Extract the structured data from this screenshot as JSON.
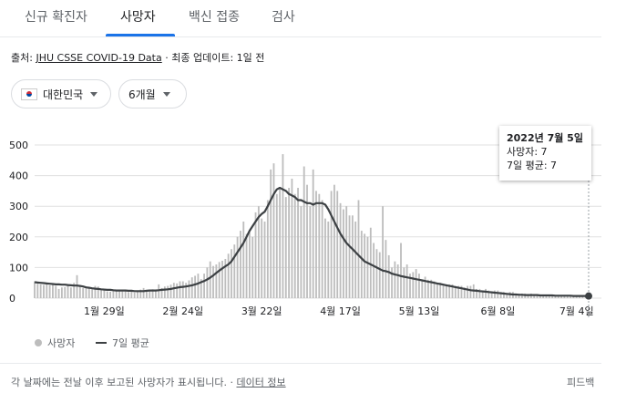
{
  "tabs": [
    {
      "label": "신규 확진자",
      "active": false
    },
    {
      "label": "사망자",
      "active": true
    },
    {
      "label": "백신 접종",
      "active": false
    },
    {
      "label": "검사",
      "active": false
    }
  ],
  "source": {
    "prefix": "출처: ",
    "link": "JHU CSSE COVID-19 Data",
    "suffix": " · 최종 업데이트: 1일 전"
  },
  "filters": {
    "country": "대한민국",
    "country_flag": "korea-flag-icon",
    "period": "6개월"
  },
  "tooltip": {
    "date": "2022년 7월 5일",
    "deaths": "사망자: 7",
    "avg": "7일 평균: 7"
  },
  "legend": {
    "bars": "사망자",
    "line": "7일 평균"
  },
  "footer": {
    "note": "각 날짜에는 전날 이후 보고된 사망자가 표시됩니다. · ",
    "link": "데이터 정보",
    "feedback": "피드백"
  },
  "colors": {
    "bar": "#bdbdbd",
    "line": "#3c4043",
    "grid": "#e0e0e0",
    "accent": "#1a73e8"
  },
  "chart_data": {
    "type": "bar",
    "title": "",
    "xlabel": "",
    "ylabel": "",
    "ylim": [
      0,
      500
    ],
    "yticks": [
      0,
      100,
      200,
      300,
      400,
      500
    ],
    "xtick_labels": [
      "1월 29일",
      "2월 24일",
      "3월 22일",
      "4월 17일",
      "5월 13일",
      "6월 8일",
      "7월 4일"
    ],
    "xtick_day_index": [
      23,
      49,
      75,
      101,
      127,
      153,
      179
    ],
    "series": [
      {
        "name": "사망자",
        "values": [
          55,
          47,
          45,
          43,
          45,
          42,
          48,
          40,
          30,
          35,
          36,
          45,
          35,
          50,
          75,
          40,
          33,
          32,
          33,
          29,
          40,
          38,
          27,
          25,
          22,
          21,
          24,
          24,
          27,
          22,
          24,
          20,
          23,
          18,
          25,
          28,
          33,
          23,
          26,
          29,
          27,
          45,
          33,
          38,
          40,
          44,
          50,
          48,
          55,
          55,
          50,
          58,
          68,
          73,
          80,
          62,
          80,
          100,
          120,
          105,
          110,
          118,
          122,
          128,
          145,
          160,
          175,
          200,
          220,
          250,
          210,
          215,
          200,
          280,
          300,
          260,
          250,
          320,
          420,
          440,
          340,
          360,
          470,
          330,
          360,
          390,
          340,
          360,
          300,
          430,
          370,
          300,
          420,
          350,
          340,
          320,
          260,
          250,
          350,
          370,
          350,
          310,
          290,
          300,
          270,
          270,
          250,
          320,
          220,
          210,
          200,
          230,
          180,
          160,
          150,
          300,
          190,
          140,
          100,
          120,
          110,
          180,
          100,
          110,
          80,
          85,
          95,
          80,
          60,
          70,
          60,
          60,
          55,
          50,
          50,
          45,
          45,
          45,
          45,
          40,
          40,
          40,
          35,
          40,
          40,
          45,
          30,
          30,
          25,
          30,
          25,
          20,
          25,
          25,
          20,
          20,
          15,
          20,
          20,
          15,
          15,
          15,
          15,
          12,
          15,
          12,
          10,
          10,
          12,
          10,
          10,
          10,
          10,
          10,
          10,
          10,
          8,
          8,
          9,
          7,
          7,
          7,
          8,
          7
        ]
      },
      {
        "name": "7일 평균",
        "values": [
          52,
          51,
          50,
          49,
          48,
          47,
          46,
          45,
          45,
          44,
          44,
          43,
          42,
          41,
          41,
          40,
          38,
          35,
          34,
          32,
          31,
          30,
          29,
          28,
          27,
          27,
          26,
          25,
          25,
          25,
          25,
          24,
          24,
          23,
          23,
          23,
          23,
          24,
          25,
          25,
          25,
          26,
          27,
          28,
          29,
          30,
          32,
          34,
          36,
          37,
          38,
          40,
          42,
          45,
          48,
          52,
          56,
          61,
          67,
          74,
          82,
          90,
          97,
          104,
          110,
          120,
          135,
          150,
          165,
          180,
          200,
          220,
          235,
          250,
          265,
          275,
          282,
          300,
          320,
          340,
          355,
          360,
          355,
          350,
          340,
          335,
          330,
          320,
          320,
          315,
          310,
          310,
          305,
          310,
          310,
          310,
          305,
          290,
          270,
          250,
          230,
          210,
          195,
          180,
          170,
          160,
          150,
          140,
          130,
          120,
          115,
          110,
          105,
          100,
          95,
          90,
          88,
          85,
          80,
          77,
          75,
          72,
          70,
          68,
          66,
          64,
          62,
          60,
          58,
          56,
          54,
          52,
          50,
          48,
          46,
          44,
          42,
          40,
          38,
          36,
          34,
          32,
          30,
          28,
          26,
          25,
          24,
          23,
          22,
          21,
          20,
          19,
          18,
          17,
          16,
          15,
          14,
          13,
          12,
          12,
          11,
          11,
          10,
          10,
          10,
          10,
          10,
          9,
          9,
          9,
          9,
          9,
          8,
          8,
          8,
          8,
          8,
          8,
          7,
          7,
          7,
          7,
          7,
          7
        ]
      }
    ],
    "grid": true,
    "legend_position": "bottom-left"
  }
}
